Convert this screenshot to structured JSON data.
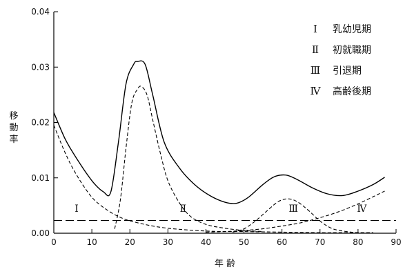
{
  "chart_data": {
    "type": "line",
    "xlabel": "年 齢",
    "ylabel": "移\n動\n率",
    "xlim": [
      0,
      90
    ],
    "ylim": [
      0,
      0.04
    ],
    "x_ticks": [
      "0",
      "10",
      "20",
      "30",
      "40",
      "50",
      "60",
      "70",
      "80",
      "90"
    ],
    "y_ticks": [
      "0.00",
      "0.01",
      "0.02",
      "0.03",
      "0.04"
    ],
    "grid": false,
    "legend_position": "top-right",
    "legend": [
      {
        "numeral": "Ⅰ",
        "label": "乳幼児期"
      },
      {
        "numeral": "Ⅱ",
        "label": "初就職期"
      },
      {
        "numeral": "Ⅲ",
        "label": "引退期"
      },
      {
        "numeral": "Ⅳ",
        "label": "高齢後期"
      }
    ],
    "region_labels": [
      {
        "text": "Ⅰ",
        "x": 6,
        "y": 0.0045
      },
      {
        "text": "Ⅱ",
        "x": 34,
        "y": 0.0045
      },
      {
        "text": "Ⅲ",
        "x": 63,
        "y": 0.0045
      },
      {
        "text": "Ⅳ",
        "x": 81,
        "y": 0.0045
      }
    ],
    "series": [
      {
        "style": "solid",
        "x": [
          0,
          3,
          6,
          10,
          13,
          15,
          17,
          19,
          21,
          22,
          24,
          26,
          29,
          33,
          37,
          41,
          45,
          48,
          51,
          55,
          58,
          61,
          64,
          68,
          72,
          76,
          80,
          84,
          87
        ],
        "y": [
          0.0218,
          0.017,
          0.0135,
          0.0095,
          0.0075,
          0.0075,
          0.0165,
          0.027,
          0.0305,
          0.031,
          0.0305,
          0.025,
          0.0165,
          0.0118,
          0.0088,
          0.0068,
          0.0056,
          0.0054,
          0.0064,
          0.0088,
          0.0102,
          0.0105,
          0.0097,
          0.0082,
          0.0071,
          0.0068,
          0.0076,
          0.0088,
          0.0101
        ]
      },
      {
        "style": "dashed",
        "x": [
          0,
          3,
          6,
          10,
          14,
          18,
          22,
          26,
          30,
          35,
          40,
          45,
          50,
          55,
          60,
          65,
          70,
          75,
          80,
          84
        ],
        "y": [
          0.0195,
          0.0145,
          0.0105,
          0.0065,
          0.0042,
          0.0027,
          0.0019,
          0.0013,
          0.0009,
          0.0006,
          0.0004,
          0.0003,
          0.0003,
          0.00025,
          0.0002,
          0.00015,
          0.0001,
          0.0001,
          0.0001,
          0.0001
        ]
      },
      {
        "style": "dashed",
        "x": [
          16,
          17.5,
          19,
          20.5,
          22,
          23,
          24.5,
          26,
          28,
          30,
          33,
          36,
          40,
          45,
          50,
          55
        ],
        "y": [
          0.0008,
          0.006,
          0.0155,
          0.0235,
          0.026,
          0.0265,
          0.025,
          0.0205,
          0.0145,
          0.0095,
          0.0055,
          0.003,
          0.0016,
          0.0009,
          0.0005,
          0.0003
        ]
      },
      {
        "style": "dashed",
        "x": [
          47,
          50,
          53,
          56,
          59,
          61.5,
          64,
          67,
          70,
          73,
          76,
          80,
          84
        ],
        "y": [
          0.0002,
          0.0008,
          0.0022,
          0.004,
          0.0057,
          0.0062,
          0.0057,
          0.0041,
          0.0022,
          0.0009,
          0.0004,
          0.0001,
          0.0
        ]
      },
      {
        "style": "dashed",
        "x": [
          40,
          45,
          50,
          55,
          60,
          65,
          70,
          75,
          80,
          84,
          87
        ],
        "y": [
          0.0002,
          0.0003,
          0.0005,
          0.0008,
          0.0013,
          0.0019,
          0.0028,
          0.0039,
          0.0053,
          0.0066,
          0.0076
        ]
      },
      {
        "style": "longdash",
        "x": [
          0,
          90
        ],
        "y": [
          0.0023,
          0.0023
        ]
      }
    ]
  }
}
